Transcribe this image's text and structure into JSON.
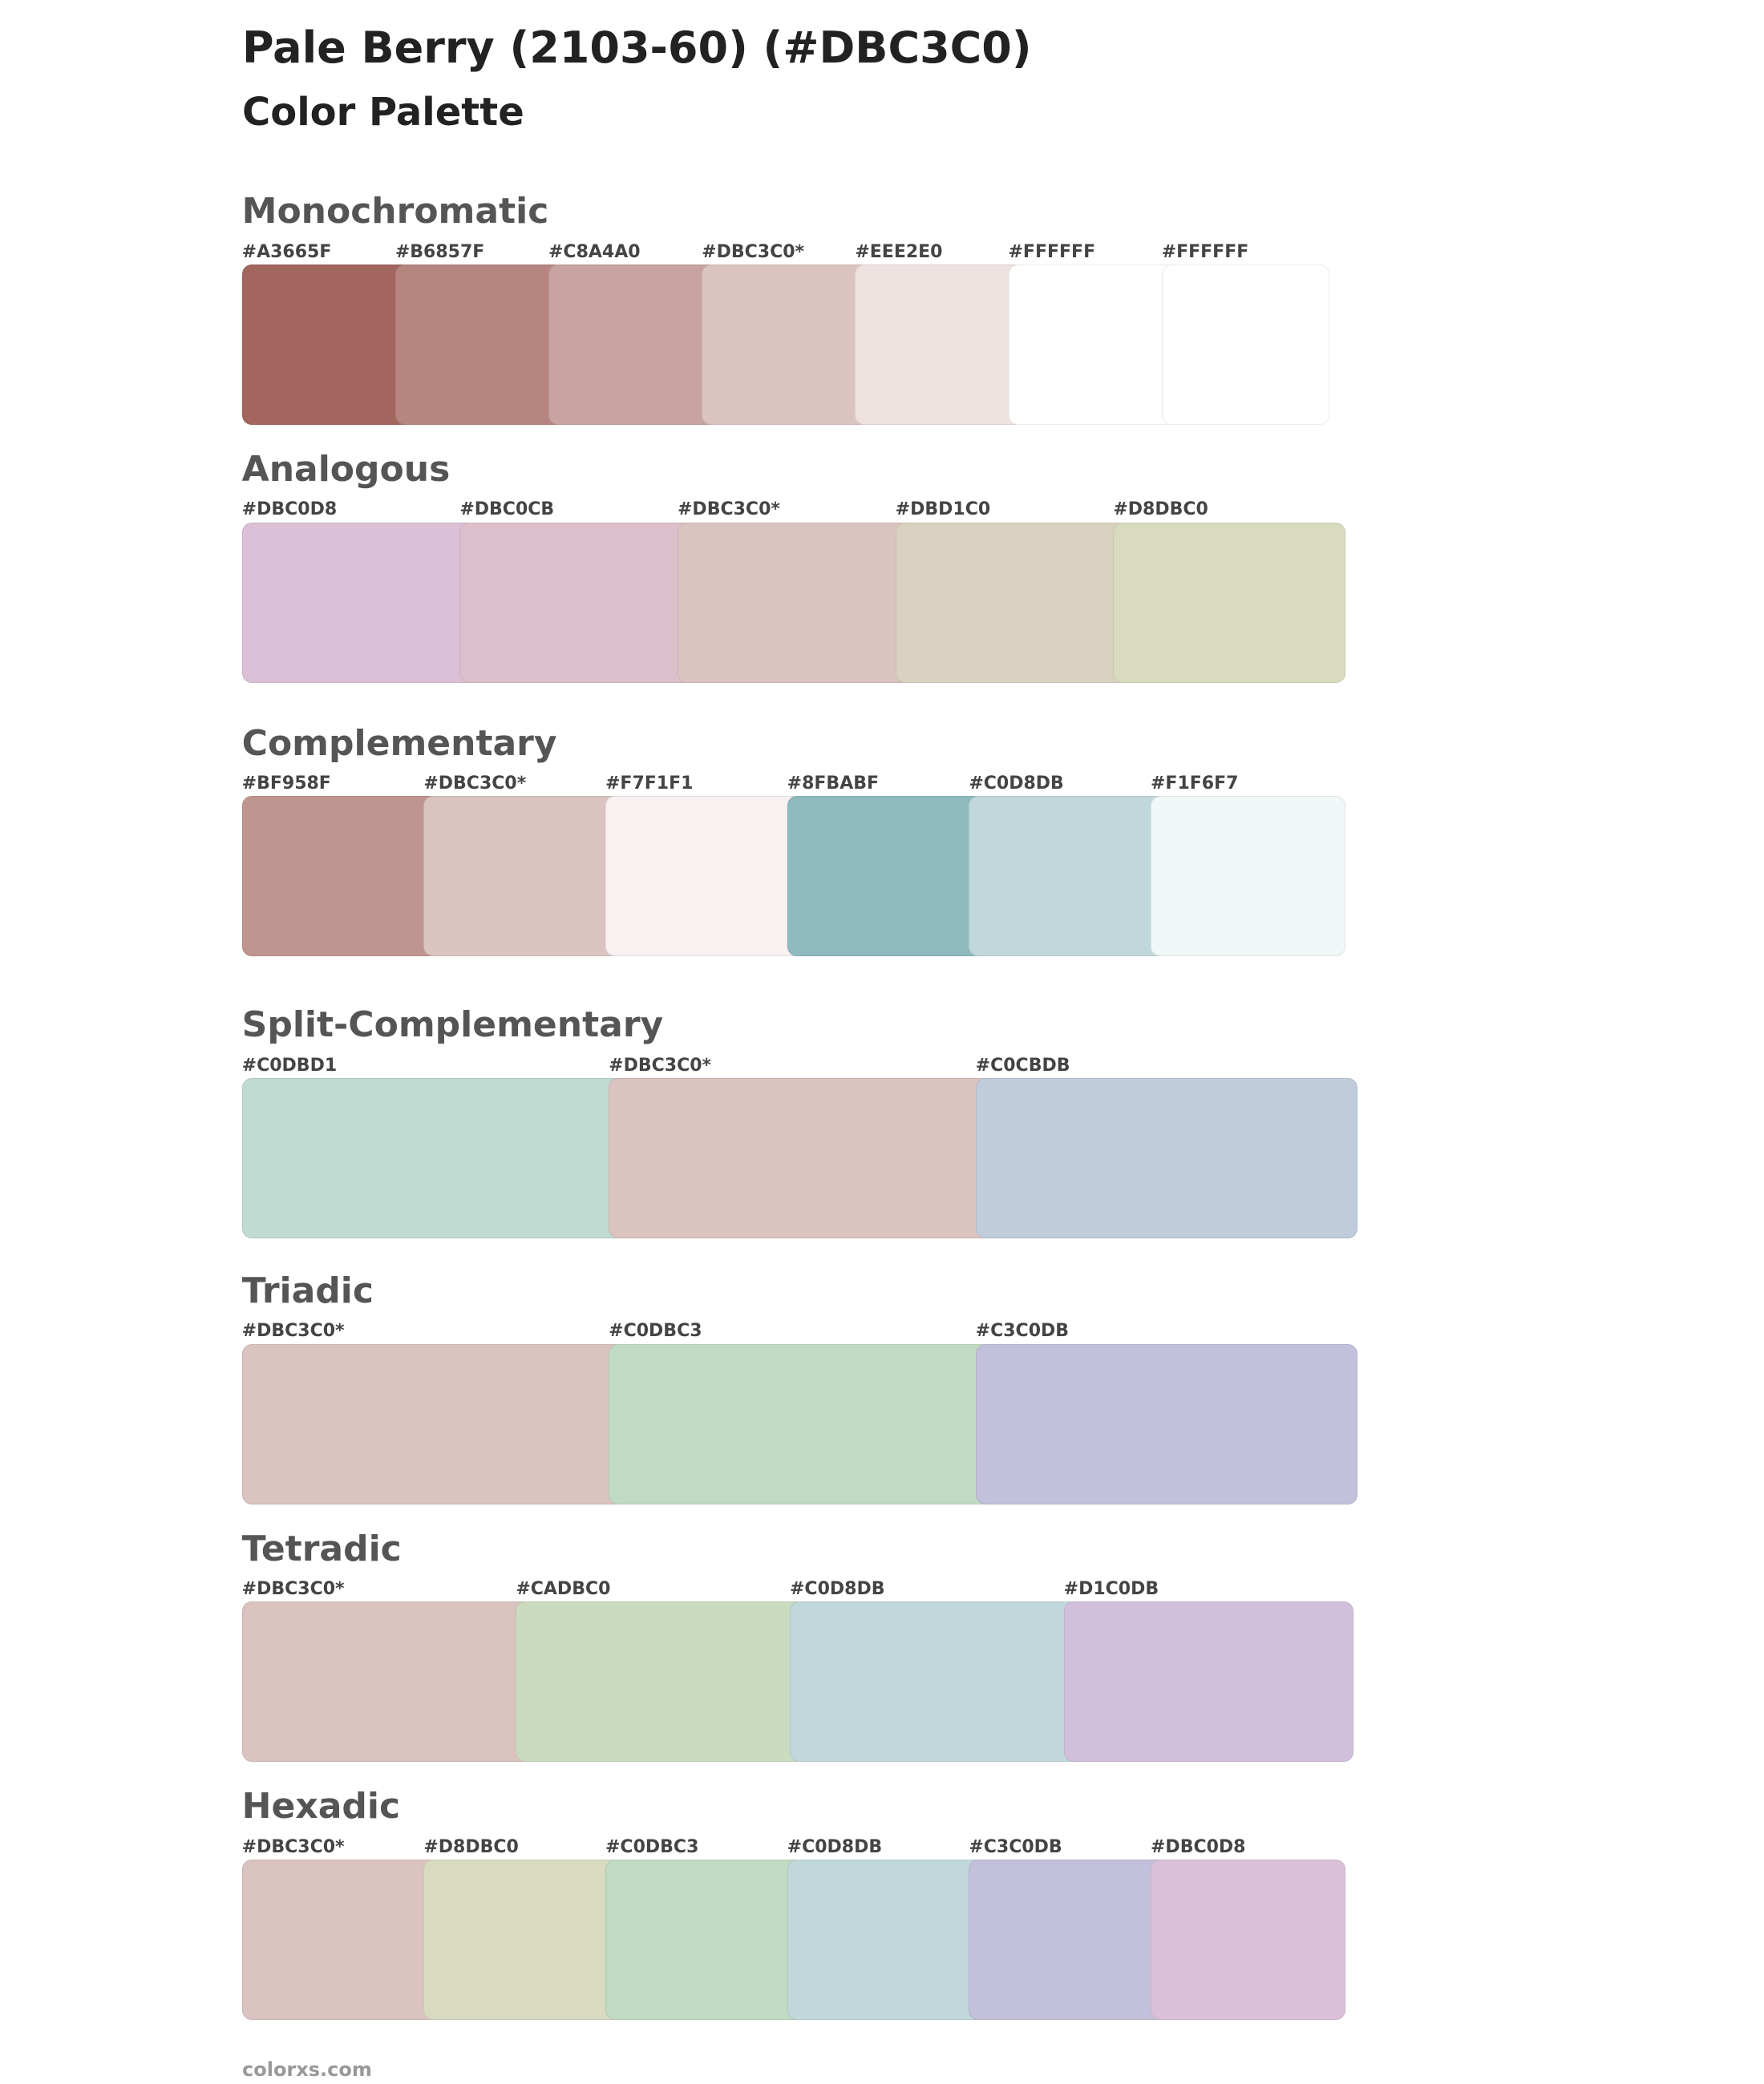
{
  "header": {
    "title": "Pale Berry (2103-60) (#DBC3C0)",
    "subtitle": "Color Palette"
  },
  "sections": [
    {
      "title": "Monochromatic",
      "swatches": [
        {
          "label": "#A3665F",
          "color": "#A3665F"
        },
        {
          "label": "#B6857F",
          "color": "#B6857F"
        },
        {
          "label": "#C8A4A0",
          "color": "#C8A4A0"
        },
        {
          "label": "#DBC3C0*",
          "color": "#DBC3C0"
        },
        {
          "label": "#EEE2E0",
          "color": "#EEE2E0"
        },
        {
          "label": "#FFFFFF",
          "color": "#FFFFFF"
        },
        {
          "label": "#FFFFFF",
          "color": "#FFFFFF"
        }
      ]
    },
    {
      "title": "Analogous",
      "swatches": [
        {
          "label": "#DBC0D8",
          "color": "#DBC0D8"
        },
        {
          "label": "#DBC0CB",
          "color": "#DBC0CB"
        },
        {
          "label": "#DBC3C0*",
          "color": "#DBC3C0"
        },
        {
          "label": "#DBD1C0",
          "color": "#DBD1C0"
        },
        {
          "label": "#D8DBC0",
          "color": "#D8DBC0"
        }
      ]
    },
    {
      "title": "Complementary",
      "swatches": [
        {
          "label": "#BF958F",
          "color": "#BF958F"
        },
        {
          "label": "#DBC3C0*",
          "color": "#DBC3C0"
        },
        {
          "label": "#F7F1F1",
          "color": "#F7F1F1"
        },
        {
          "label": "#8FBABF",
          "color": "#8FBABF"
        },
        {
          "label": "#C0D8DB",
          "color": "#C0D8DB"
        },
        {
          "label": "#F1F6F7",
          "color": "#F1F6F7"
        }
      ]
    },
    {
      "title": "Split-Complementary",
      "swatches": [
        {
          "label": "#C0DBD1",
          "color": "#C0DBD1"
        },
        {
          "label": "#DBC3C0*",
          "color": "#DBC3C0"
        },
        {
          "label": "#C0CBDB",
          "color": "#C0CBDB"
        }
      ]
    },
    {
      "title": "Triadic",
      "swatches": [
        {
          "label": "#DBC3C0*",
          "color": "#DBC3C0"
        },
        {
          "label": "#C0DBC3",
          "color": "#C0DBC3"
        },
        {
          "label": "#C3C0DB",
          "color": "#C3C0DB"
        }
      ]
    },
    {
      "title": "Tetradic",
      "swatches": [
        {
          "label": "#DBC3C0*",
          "color": "#DBC3C0"
        },
        {
          "label": "#CADBC0",
          "color": "#CADBC0"
        },
        {
          "label": "#C0D8DB",
          "color": "#C0D8DB"
        },
        {
          "label": "#D1C0DB",
          "color": "#D1C0DB"
        }
      ]
    },
    {
      "title": "Hexadic",
      "swatches": [
        {
          "label": "#DBC3C0*",
          "color": "#DBC3C0"
        },
        {
          "label": "#D8DBC0",
          "color": "#D8DBC0"
        },
        {
          "label": "#C0DBC3",
          "color": "#C0DBC3"
        },
        {
          "label": "#C0D8DB",
          "color": "#C0D8DB"
        },
        {
          "label": "#C3C0DB",
          "color": "#C3C0DB"
        },
        {
          "label": "#DBC0D8",
          "color": "#DBC0D8"
        }
      ]
    }
  ],
  "footer": "colorxs.com"
}
